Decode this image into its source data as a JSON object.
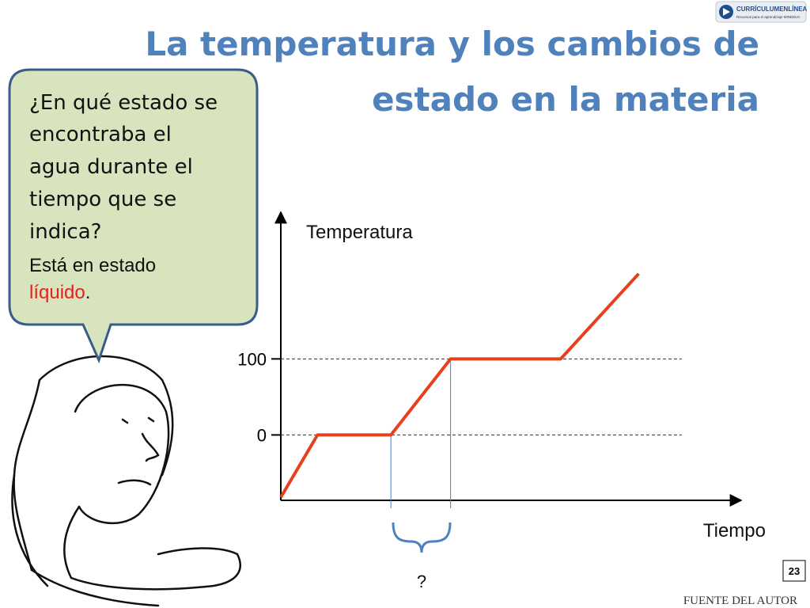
{
  "logo": {
    "name": "CURRÍCULUMENLÍNEA",
    "tagline": "Recursos para el aprendizaje MINEDUC"
  },
  "title_lines": [
    "La temperatura y los cambios de",
    "estado en la materia"
  ],
  "bubble": {
    "question_lines": [
      "¿En qué estado se",
      "encontraba el",
      "agua durante el",
      "tiempo que se",
      "indica?"
    ],
    "answer_line": "Está en estado",
    "answer_word": "líquido",
    "answer_end": "."
  },
  "chart_data": {
    "type": "line",
    "y_label": "Temperatura",
    "x_label": "Tiempo",
    "x": [
      0,
      8,
      24,
      37,
      61,
      78
    ],
    "values": [
      -82,
      0,
      0,
      100,
      100,
      212
    ],
    "color": "#e8401c",
    "xlim": [
      0,
      100
    ],
    "ylim": [
      -86,
      293
    ],
    "yticks": [
      0,
      100
    ],
    "grid": true,
    "guides": [
      24,
      37
    ],
    "guide_label": "?"
  },
  "page_number": "23",
  "source": "FUENTE DEL AUTOR"
}
